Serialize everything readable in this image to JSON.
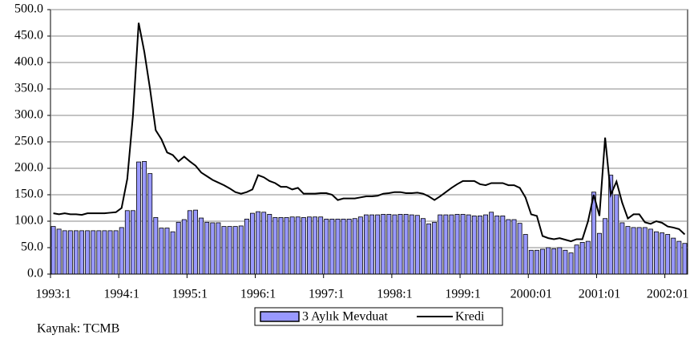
{
  "chart_data": {
    "type": "bar",
    "categories": [
      "1993:1",
      null,
      null,
      null,
      null,
      null,
      null,
      null,
      null,
      null,
      null,
      null,
      "1994:1",
      null,
      null,
      null,
      null,
      null,
      null,
      null,
      null,
      null,
      null,
      null,
      "1995:1",
      null,
      null,
      null,
      null,
      null,
      null,
      null,
      null,
      null,
      null,
      null,
      "1996:1",
      null,
      null,
      null,
      null,
      null,
      null,
      null,
      null,
      null,
      null,
      null,
      "1997:1",
      null,
      null,
      null,
      null,
      null,
      null,
      null,
      null,
      null,
      null,
      null,
      "1998:1",
      null,
      null,
      null,
      null,
      null,
      null,
      null,
      null,
      null,
      null,
      null,
      "1999:1",
      null,
      null,
      null,
      null,
      null,
      null,
      null,
      null,
      null,
      null,
      null,
      "2000:01",
      null,
      null,
      null,
      null,
      null,
      null,
      null,
      null,
      null,
      null,
      null,
      "2001:01",
      null,
      null,
      null,
      null,
      null,
      null,
      null,
      null,
      null,
      null,
      null,
      "2002:01",
      null,
      null,
      null
    ],
    "series": [
      {
        "name": "3 Aylık Mevduat",
        "type": "bar",
        "color": "#9999ff",
        "values": [
          90,
          85,
          82,
          82,
          82,
          82,
          82,
          82,
          82,
          82,
          82,
          82,
          88,
          120,
          120,
          212,
          213,
          190,
          107,
          87,
          87,
          80,
          98,
          103,
          120,
          121,
          106,
          98,
          97,
          97,
          90,
          90,
          90,
          91,
          104,
          115,
          118,
          117,
          113,
          107,
          107,
          107,
          108,
          108,
          107,
          108,
          108,
          108,
          104,
          104,
          104,
          104,
          104,
          105,
          108,
          112,
          112,
          112,
          113,
          113,
          112,
          113,
          113,
          112,
          111,
          105,
          95,
          98,
          112,
          112,
          112,
          113,
          113,
          112,
          110,
          110,
          112,
          117,
          110,
          110,
          103,
          103,
          96,
          75,
          45,
          45,
          47,
          50,
          48,
          50,
          45,
          40,
          55,
          60,
          62,
          155,
          77,
          105,
          187,
          150,
          97,
          90,
          88,
          88,
          88,
          85,
          80,
          78,
          75,
          68,
          62,
          58
        ]
      },
      {
        "name": "Kredi",
        "type": "line",
        "color": "#000000",
        "values": [
          115,
          113,
          115,
          113,
          113,
          112,
          115,
          115,
          115,
          115,
          116,
          117,
          125,
          180,
          300,
          475,
          420,
          350,
          272,
          255,
          230,
          225,
          213,
          222,
          213,
          205,
          192,
          185,
          178,
          173,
          168,
          162,
          155,
          152,
          155,
          160,
          187,
          183,
          176,
          172,
          165,
          165,
          160,
          163,
          152,
          152,
          152,
          153,
          153,
          150,
          140,
          143,
          143,
          143,
          145,
          147,
          147,
          148,
          152,
          153,
          155,
          155,
          153,
          153,
          154,
          152,
          147,
          140,
          147,
          155,
          163,
          170,
          176,
          176,
          176,
          170,
          168,
          172,
          172,
          172,
          168,
          168,
          163,
          145,
          113,
          110,
          72,
          68,
          66,
          68,
          65,
          62,
          66,
          66,
          100,
          150,
          110,
          258,
          150,
          175,
          135,
          105,
          113,
          113,
          98,
          95,
          100,
          97,
          90,
          88,
          85,
          75
        ]
      }
    ],
    "ylim": [
      0,
      500
    ],
    "yticks": [
      {
        "value": 0,
        "label": "0.0"
      },
      {
        "value": 50,
        "label": "50.0"
      },
      {
        "value": 100,
        "label": "100.0"
      },
      {
        "value": 150,
        "label": "150.0"
      },
      {
        "value": 200,
        "label": "200.0"
      },
      {
        "value": 250,
        "label": "250.0"
      },
      {
        "value": 300,
        "label": "300.0"
      },
      {
        "value": 350,
        "label": "350.0"
      },
      {
        "value": 400,
        "label": "400.0"
      },
      {
        "value": 450,
        "label": "450.0"
      },
      {
        "value": 500,
        "label": "500.0"
      }
    ],
    "grid": true,
    "source": "Kaynak: TCMB"
  }
}
